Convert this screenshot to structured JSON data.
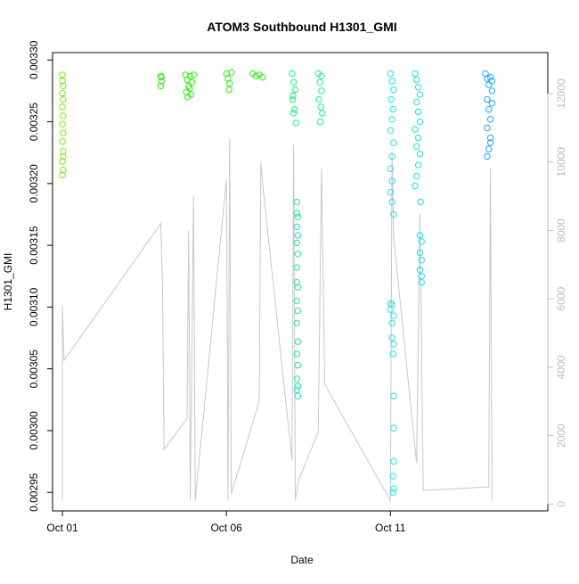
{
  "chart_data": {
    "type": "scatter",
    "title": "ATOM3 Southbound H1301_GMI",
    "xlabel": "Date",
    "ylabel": "H1301_GMI",
    "x_ticks": [
      {
        "day": 1,
        "label": "Oct 01"
      },
      {
        "day": 6,
        "label": "Oct 06"
      },
      {
        "day": 11,
        "label": "Oct 11"
      }
    ],
    "y_ticks": [
      0.00295,
      0.003,
      0.00305,
      0.0031,
      0.00315,
      0.0032,
      0.00325,
      0.0033
    ],
    "y_tick_labels": [
      "0.00295",
      "0.00300",
      "0.00305",
      "0.00310",
      "0.00315",
      "0.00320",
      "0.00325",
      "0.00330"
    ],
    "xlim_days": [
      0.7,
      15.8
    ],
    "ylim": [
      0.002935,
      0.003306
    ],
    "secondary_axis": {
      "label": "",
      "ticks": [
        0,
        2000,
        4000,
        6000,
        8000,
        10000,
        12000
      ],
      "tick_labels": [
        "0",
        "2000",
        "4000",
        "6000",
        "8000",
        "10000",
        "12000"
      ],
      "lim": [
        -200,
        13200
      ],
      "color": "#bdbdbd"
    },
    "altitude_trace": [
      [
        1.0,
        100
      ],
      [
        1.0,
        5800
      ],
      [
        1.05,
        4200
      ],
      [
        4.0,
        8200
      ],
      [
        4.05,
        6400
      ],
      [
        4.1,
        1600
      ],
      [
        4.8,
        2500
      ],
      [
        4.85,
        8000
      ],
      [
        4.9,
        100
      ],
      [
        5.0,
        9000
      ],
      [
        5.05,
        100
      ],
      [
        6.0,
        9500
      ],
      [
        6.05,
        100
      ],
      [
        6.1,
        10700
      ],
      [
        6.15,
        300
      ],
      [
        7.0,
        3000
      ],
      [
        7.05,
        10000
      ],
      [
        7.1,
        9400
      ],
      [
        8.0,
        1300
      ],
      [
        8.05,
        10500
      ],
      [
        8.1,
        100
      ],
      [
        8.2,
        700
      ],
      [
        8.8,
        2100
      ],
      [
        8.9,
        9800
      ],
      [
        9.0,
        3500
      ],
      [
        11.0,
        100
      ],
      [
        11.05,
        10300
      ],
      [
        11.1,
        7800
      ],
      [
        11.8,
        1200
      ],
      [
        11.9,
        8500
      ],
      [
        12.0,
        400
      ],
      [
        14.0,
        500
      ],
      [
        14.05,
        9800
      ],
      [
        14.1,
        100
      ]
    ],
    "series": [
      {
        "color": "#7ee81a",
        "points": [
          [
            1.0,
            0.003288
          ],
          [
            1.0,
            0.003283
          ],
          [
            1.02,
            0.003279
          ],
          [
            1.0,
            0.003273
          ],
          [
            1.02,
            0.003268
          ],
          [
            1.0,
            0.003262
          ],
          [
            1.02,
            0.003255
          ],
          [
            1.0,
            0.003248
          ],
          [
            1.02,
            0.003241
          ],
          [
            1.0,
            0.003234
          ],
          [
            1.02,
            0.003226
          ],
          [
            1.0,
            0.003218
          ],
          [
            1.02,
            0.003211
          ],
          [
            1.0,
            0.003207
          ],
          [
            1.02,
            0.003222
          ]
        ]
      },
      {
        "color": "#33ee14",
        "points": [
          [
            4.0,
            0.003287
          ],
          [
            4.02,
            0.003283
          ],
          [
            4.0,
            0.003279
          ],
          [
            4.02,
            0.003286
          ],
          [
            4.75,
            0.003288
          ],
          [
            4.8,
            0.003284
          ],
          [
            4.85,
            0.003279
          ],
          [
            4.9,
            0.003287
          ],
          [
            4.95,
            0.003282
          ],
          [
            5.0,
            0.003288
          ],
          [
            4.78,
            0.003274
          ],
          [
            4.82,
            0.00327
          ],
          [
            4.88,
            0.003277
          ],
          [
            4.92,
            0.003272
          ],
          [
            6.0,
            0.003289
          ],
          [
            6.05,
            0.003285
          ],
          [
            6.1,
            0.003281
          ],
          [
            6.15,
            0.00329
          ],
          [
            6.08,
            0.003276
          ],
          [
            6.8,
            0.003289
          ],
          [
            6.9,
            0.003287
          ],
          [
            7.0,
            0.003288
          ],
          [
            7.1,
            0.003286
          ]
        ]
      },
      {
        "color": "#1af07a",
        "points": [
          [
            8.0,
            0.003289
          ],
          [
            8.05,
            0.003282
          ],
          [
            8.1,
            0.003276
          ],
          [
            8.02,
            0.003268
          ],
          [
            8.08,
            0.00326
          ],
          [
            8.12,
            0.003249
          ],
          [
            8.05,
            0.003257
          ],
          [
            8.03,
            0.003271
          ]
        ]
      },
      {
        "color": "#20e3a8",
        "points": [
          [
            8.15,
            0.003185
          ],
          [
            8.15,
            0.003176
          ],
          [
            8.18,
            0.003173
          ],
          [
            8.15,
            0.003165
          ],
          [
            8.18,
            0.003158
          ],
          [
            8.15,
            0.003152
          ],
          [
            8.18,
            0.003143
          ],
          [
            8.15,
            0.003132
          ],
          [
            8.18,
            0.003116
          ],
          [
            8.15,
            0.003105
          ],
          [
            8.18,
            0.003097
          ],
          [
            8.15,
            0.003087
          ],
          [
            8.18,
            0.003072
          ],
          [
            8.15,
            0.003062
          ],
          [
            8.18,
            0.003053
          ],
          [
            8.15,
            0.003042
          ],
          [
            8.18,
            0.003036
          ],
          [
            8.15,
            0.003033
          ],
          [
            8.18,
            0.003028
          ],
          [
            8.15,
            0.00312
          ]
        ]
      },
      {
        "color": "#22e8b0",
        "points": [
          [
            8.8,
            0.003289
          ],
          [
            8.85,
            0.003282
          ],
          [
            8.9,
            0.003275
          ],
          [
            8.82,
            0.003268
          ],
          [
            8.88,
            0.003262
          ],
          [
            8.92,
            0.003257
          ],
          [
            8.86,
            0.00325
          ],
          [
            8.9,
            0.003287
          ]
        ]
      },
      {
        "color": "#1de6e6",
        "points": [
          [
            11.0,
            0.003289
          ],
          [
            11.05,
            0.003283
          ],
          [
            11.1,
            0.003276
          ],
          [
            11.02,
            0.003268
          ],
          [
            11.08,
            0.00326
          ],
          [
            11.05,
            0.003252
          ],
          [
            11.0,
            0.003243
          ],
          [
            11.1,
            0.003233
          ],
          [
            11.05,
            0.003222
          ],
          [
            11.0,
            0.003212
          ],
          [
            11.05,
            0.003202
          ],
          [
            11.0,
            0.003193
          ],
          [
            11.05,
            0.003185
          ],
          [
            11.1,
            0.003175
          ],
          [
            11.0,
            0.003098
          ],
          [
            11.05,
            0.003102
          ],
          [
            11.1,
            0.003093
          ],
          [
            11.05,
            0.003075
          ],
          [
            11.1,
            0.00307
          ],
          [
            11.08,
            0.003062
          ],
          [
            11.1,
            0.003028
          ],
          [
            11.1,
            0.003002
          ],
          [
            11.1,
            0.002975
          ],
          [
            11.08,
            0.002963
          ],
          [
            11.1,
            0.002953
          ],
          [
            11.08,
            0.00295
          ],
          [
            11.05,
            0.003087
          ],
          [
            11.0,
            0.003103
          ]
        ]
      },
      {
        "color": "#1adcec",
        "points": [
          [
            11.75,
            0.003289
          ],
          [
            11.8,
            0.003284
          ],
          [
            11.85,
            0.003278
          ],
          [
            11.9,
            0.003272
          ],
          [
            11.8,
            0.003266
          ],
          [
            11.85,
            0.003258
          ],
          [
            11.9,
            0.00325
          ],
          [
            11.75,
            0.003244
          ],
          [
            11.85,
            0.003237
          ],
          [
            11.8,
            0.00323
          ],
          [
            11.9,
            0.003224
          ],
          [
            11.85,
            0.003215
          ],
          [
            11.8,
            0.003206
          ],
          [
            11.75,
            0.003198
          ],
          [
            11.9,
            0.003158
          ],
          [
            11.95,
            0.003153
          ],
          [
            11.9,
            0.003144
          ],
          [
            11.95,
            0.003138
          ],
          [
            11.9,
            0.00313
          ],
          [
            11.95,
            0.003125
          ],
          [
            11.92,
            0.003185
          ],
          [
            11.95,
            0.00312
          ]
        ]
      },
      {
        "color": "#1ea8f0",
        "points": [
          [
            13.9,
            0.003289
          ],
          [
            13.95,
            0.003285
          ],
          [
            14.0,
            0.00328
          ],
          [
            14.05,
            0.003286
          ],
          [
            14.1,
            0.003275
          ],
          [
            13.95,
            0.003268
          ],
          [
            14.0,
            0.00326
          ],
          [
            14.05,
            0.003252
          ],
          [
            14.1,
            0.003265
          ],
          [
            13.95,
            0.003245
          ],
          [
            14.05,
            0.003237
          ],
          [
            14.0,
            0.003228
          ],
          [
            13.95,
            0.003222
          ],
          [
            14.05,
            0.003233
          ],
          [
            14.1,
            0.003283
          ]
        ]
      }
    ]
  }
}
